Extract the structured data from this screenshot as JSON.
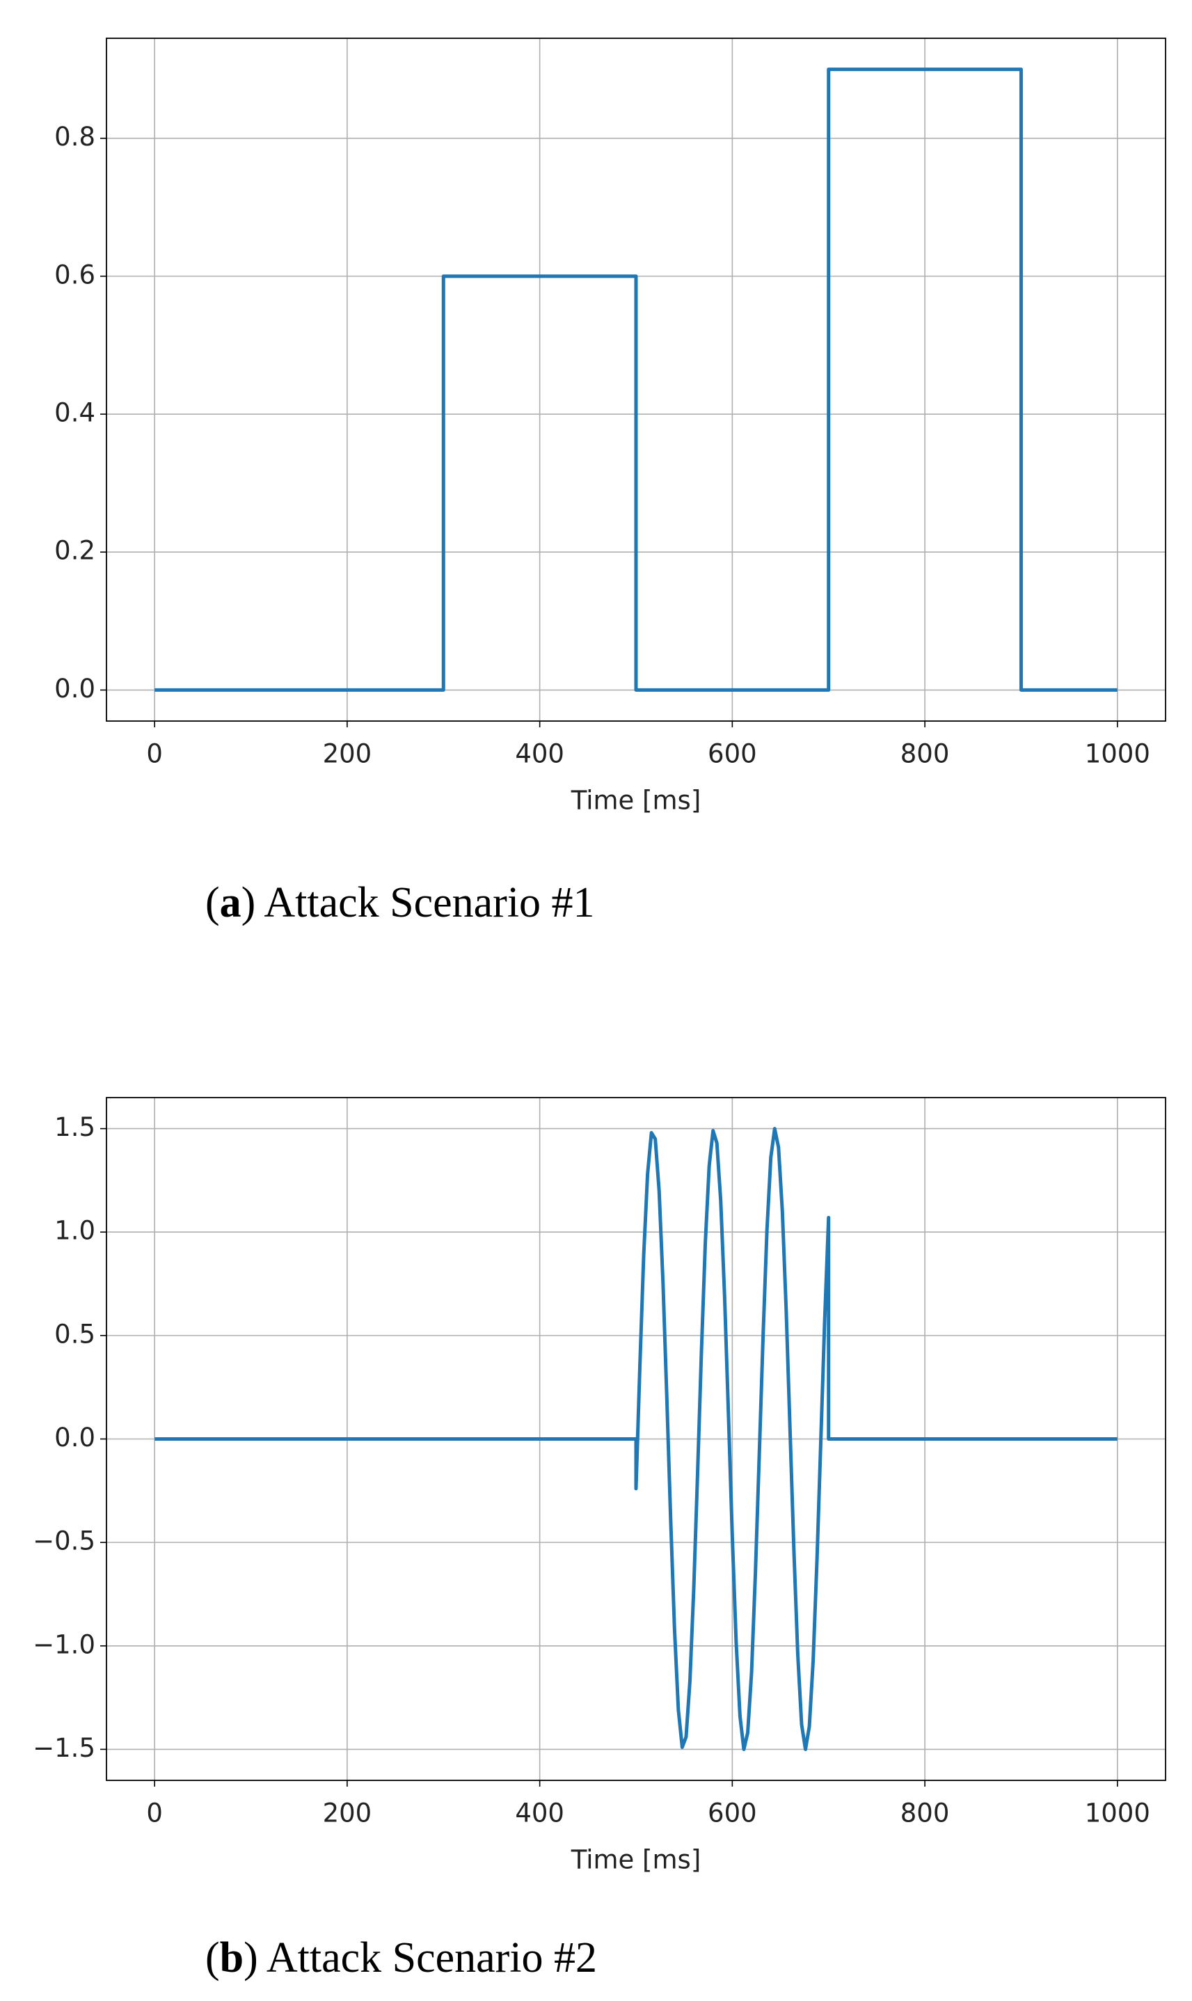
{
  "chart_data": [
    {
      "type": "line",
      "xlabel": "Time [ms]",
      "caption": [
        "(",
        "a",
        ") Attack Scenario #1"
      ],
      "color": "#1f77b4",
      "grid": true,
      "x": [
        0,
        300,
        300,
        500,
        500,
        700,
        700,
        900,
        900,
        1000
      ],
      "values": [
        0,
        0,
        0.6,
        0.6,
        0,
        0,
        0.9,
        0.9,
        0,
        0
      ],
      "xlim": [
        -50,
        1050
      ],
      "xticks": [
        0,
        200,
        400,
        600,
        800,
        1000
      ],
      "ylim": [
        -0.045,
        0.945
      ],
      "yticks": [
        {
          "value": 0,
          "label": "0.0"
        },
        0.2,
        0.4,
        0.6,
        0.8
      ]
    },
    {
      "type": "line",
      "xlabel": "Time [ms]",
      "caption": [
        "(",
        "b",
        ") Attack Scenario #2"
      ],
      "color": "#1f77b4",
      "grid": true,
      "x": [
        0,
        500,
        500,
        504,
        508,
        512,
        516,
        520,
        524,
        528,
        532,
        536,
        540,
        544,
        548,
        552,
        556,
        560,
        564,
        568,
        572,
        576,
        580,
        584,
        588,
        592,
        596,
        600,
        604,
        608,
        612,
        616,
        620,
        624,
        628,
        632,
        636,
        640,
        644,
        648,
        652,
        656,
        660,
        664,
        668,
        672,
        676,
        680,
        684,
        688,
        692,
        696,
        700,
        700,
        1000
      ],
      "values": [
        0,
        0,
        -0.24,
        0.35,
        0.89,
        1.28,
        1.48,
        1.45,
        1.2,
        0.76,
        0.2,
        -0.39,
        -0.92,
        -1.31,
        -1.49,
        -1.44,
        -1.17,
        -0.72,
        -0.16,
        0.43,
        0.95,
        1.32,
        1.49,
        1.43,
        1.15,
        0.69,
        0.12,
        -0.47,
        -0.98,
        -1.34,
        -1.5,
        -1.42,
        -1.13,
        -0.65,
        -0.08,
        0.5,
        1.01,
        1.36,
        1.5,
        1.41,
        1.1,
        0.62,
        0.04,
        -0.54,
        -1.04,
        -1.38,
        -1.5,
        -1.39,
        -1.07,
        -0.58,
        0,
        0.58,
        1.07,
        0,
        0
      ],
      "xlim": [
        -50,
        1050
      ],
      "xticks": [
        0,
        200,
        400,
        600,
        800,
        1000
      ],
      "ylim": [
        -1.65,
        1.65
      ],
      "yticks": [
        {
          "value": -1.5,
          "label": "−1.5"
        },
        {
          "value": -1,
          "label": "−1.0"
        },
        {
          "value": -0.5,
          "label": "−0.5"
        },
        {
          "value": 0,
          "label": "0.0"
        },
        0.5,
        {
          "value": 1,
          "label": "1.0"
        },
        1.5
      ]
    }
  ]
}
